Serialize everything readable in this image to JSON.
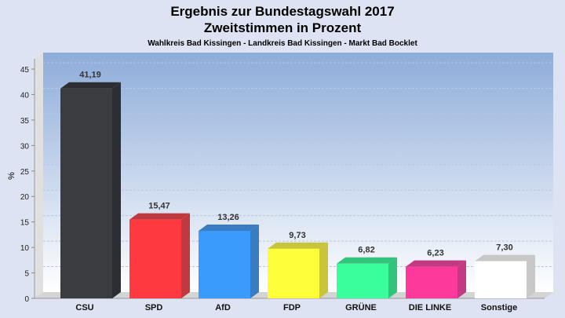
{
  "chart_data": {
    "type": "bar",
    "title": "Ergebnis zur Bundestagswahl 2017",
    "subtitle": "Zweitstimmen in Prozent",
    "caption": "Wahlkreis Bad Kissingen - Landkreis Bad Kissingen - Markt Bad Bocklet",
    "xlabel": "",
    "ylabel": "%",
    "ylim": [
      0,
      45
    ],
    "yticks": [
      0,
      5,
      10,
      15,
      20,
      25,
      30,
      35,
      40,
      45
    ],
    "categories": [
      "CSU",
      "SPD",
      "AfD",
      "FDP",
      "GRÜNE",
      "DIE LINKE",
      "Sonstige"
    ],
    "values": [
      41.19,
      15.47,
      13.26,
      9.73,
      6.82,
      6.23,
      7.3
    ],
    "labels": [
      "41,19",
      "15,47",
      "13,26",
      "9,73",
      "6,82",
      "6,23",
      "7,30"
    ],
    "colors": [
      "#3a3c40",
      "#fe3a40",
      "#3a9bfc",
      "#fdfd3a",
      "#3afd9b",
      "#fd3a9b",
      "#ffffff"
    ],
    "side_colors": [
      "#2c2e33",
      "#bf3a40",
      "#3a7cc0",
      "#c8c53a",
      "#33c47b",
      "#c23a82",
      "#c8c8c8"
    ],
    "grid": true
  }
}
